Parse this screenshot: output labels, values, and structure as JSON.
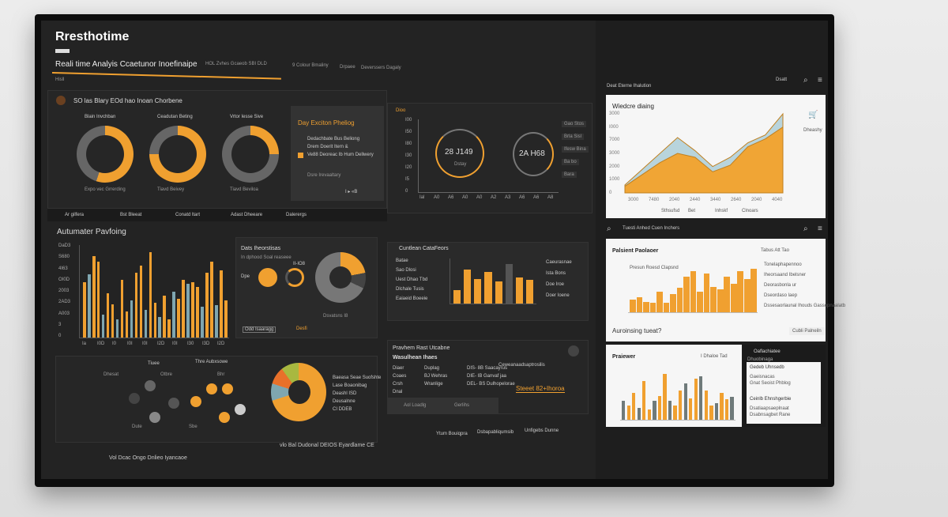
{
  "app": {
    "title": "Rresthotime"
  },
  "header": {
    "title": "Reali time Analyis  Ccaetunor Inoefinaipe",
    "items": [
      "HOL Zvhes  Gcaeob SBI DLD",
      "9 Colour Bmaliny",
      "Drpaee",
      "Deverssers Dagaly"
    ],
    "sub": "Hisll"
  },
  "colors": {
    "accent": "#f0a030",
    "bg": "#232323",
    "panel": "#2a2a2a",
    "teal": "#7fa6b0"
  },
  "rings": {
    "title": "SO las Blary EOd hao Inoan Chorbene",
    "items": [
      {
        "label": "Blain Invchban",
        "caption": "Expo vec Grrerding",
        "value": 0.55
      },
      {
        "label": "Ceadutan Beting",
        "caption": "Tiavd Beivey",
        "value": 0.75
      },
      {
        "label": "Vrtor Iesse Sive",
        "caption": "Tiavd Beviloa",
        "value": 0.25
      }
    ]
  },
  "day_panel": {
    "title": "Day Exciton Pheliog",
    "items": [
      "Dedachbate Bus Beliong",
      "Drem Doerit Itern &",
      "Ve88 Deoreac Ib Hum Dellwery"
    ],
    "footer": "Dsre Irevaaltary",
    "pager": "I  ▸  «B"
  },
  "gauges": {
    "tab": "Dioo",
    "values": [
      "28 J149",
      "2A H68"
    ],
    "caption": "Dstay",
    "yticks": [
      "I00",
      "I50",
      "I80",
      "I30",
      "I20",
      "I5",
      "0"
    ],
    "xticks": [
      "Ial",
      "A0",
      "A6",
      "A0",
      "A0",
      "A2",
      "A3",
      "A6",
      "A6",
      "A8"
    ],
    "side": [
      "Gao Stos",
      "Brla Sisl",
      "Ifesw Bina",
      "Ba bo",
      "Bara"
    ]
  },
  "toolbar": {
    "items": [
      "Ar gilfera",
      "Bst Bleeat",
      "Conatd ltart",
      "Adast Dheeare",
      "Dalerergs"
    ]
  },
  "perf": {
    "title": "Autumater Pavfoing",
    "yticks": [
      "DaD3",
      "S680",
      "4I63",
      "OI0D",
      "2003",
      "2AD3",
      "A003",
      "3",
      "0"
    ],
    "xticks": [
      "Ia",
      "I0D",
      "I0",
      "I0I",
      "I0I",
      "I2D",
      "I0I",
      "I30",
      "I3D",
      "I2D"
    ]
  },
  "donut_panel": {
    "title": "Dats Iheorstisas",
    "sub": "In dphood Soal reaseee",
    "labels": [
      "Dpe",
      "II-IO8",
      "Dsvatsns I8"
    ],
    "legend": [
      "Odd Isaaragg",
      "Desfi"
    ]
  },
  "customer": {
    "title": "Cuntlean CataFeors",
    "menu": [
      "Batae",
      "Sao Dlosi",
      "Uest Dhao Tbd",
      "Dlchale Tusis",
      "Eaiaeid Boeeie"
    ],
    "side": [
      "Caeurasnae",
      "Ista Bons",
      "Doe Iroe",
      "Doer Ioene"
    ]
  },
  "network": {
    "title1": "Tiuee",
    "title2": "Thre Aubxsowe",
    "labels": [
      "Dhesat",
      "Dute",
      "Otbre",
      "Sbe",
      "Bhr"
    ],
    "legend": [
      "Baeasa  Seae Suofshte",
      "Lase Boaonibag",
      "Deashl ISD",
      "Deusalnne",
      "CI DDEB"
    ]
  },
  "problem": {
    "title": "Pravhem Rast Utcabne",
    "subtitle": "Wasulhean Ihaes",
    "rows": [
      [
        "Diaer",
        "Duplag",
        "DIS- 8B Saacayrus"
      ],
      [
        "Coaes",
        "BJ Wehras",
        "DIE-  IB Ganvaf jaa"
      ],
      [
        "Crsh",
        "Wranlige",
        "DEL- BS Dulhopelorae"
      ],
      [
        "Dnal",
        "",
        ""
      ]
    ],
    "tag": "Ceweanaadsaptrosilis",
    "highlight": "Steeet 82+Ihoroa",
    "footer": [
      "Aol  Loadlg",
      "Gerlihs"
    ]
  },
  "footer": {
    "left": "Vol  Dcac Ongo Dnlieo Iyancaoe",
    "right": "vlo  Bal  Dudonal DEIOS  Eyardlame CE",
    "links": [
      "Ytum Bouiqpra",
      "Dsbapabliqumsib",
      "Unfigebs Dunne"
    ]
  },
  "right1": {
    "header": "Deat Eterne Ihalution",
    "tools": "Dsatt",
    "title": "Wiedcre diaing",
    "yticks": [
      "3000",
      "I000",
      "7000",
      "3000",
      "2000",
      "1000",
      "0"
    ],
    "xticks": [
      "3000",
      "7480",
      "2040",
      "2440",
      "3440",
      "2640",
      "2040",
      "4040"
    ],
    "legend": [
      "Sthsufsd",
      "Bet",
      "Inhskf",
      "Clnoars"
    ],
    "cart": "Dheashy"
  },
  "right2": {
    "header": "Tuesti Anhed Cuen Inchers",
    "title": "Palsient Paolaoer",
    "tabs": "Tabus  Att  Tao",
    "chart_label": "Presun Roesd Clapsnd",
    "options": [
      "Tonelaphapennoo",
      "Iheorsaand Ibelsner",
      "Deorasbonla  ur",
      "Dseordaso laep",
      "Dssesaorlaunal Ihouds Gassopnaalatb"
    ],
    "question": "Auroinsing tueat?",
    "button": "Cubli Palneiln"
  },
  "right3": {
    "title": "Praiewer",
    "tools": "I  Dhaloe  Tad",
    "panel_title": "Oaflachiatee",
    "panel_sub": "Dhuobinaga",
    "groups": [
      "Gedeb Uhnsedb",
      "Ceinlb Ehnshgerbie"
    ],
    "lines": [
      "Gaeisnacas",
      "Gnat Seoist Phblog",
      "Dsatiaapsaeplnaat",
      "Dsabnsagbet Rane"
    ]
  },
  "chart_data": [
    {
      "type": "bar",
      "id": "perf",
      "series": [
        {
          "values": [
            60,
            68,
            88,
            82,
            25,
            48,
            36,
            20,
            62,
            28,
            40,
            70,
            78,
            30,
            92,
            38,
            22,
            45,
            20,
            50,
            42,
            62,
            58,
            60,
            55,
            33,
            70,
            82,
            35,
            73,
            40
          ]
        }
      ],
      "ylim": [
        0,
        100
      ]
    },
    {
      "type": "bar",
      "id": "customer",
      "values": [
        30,
        75,
        55,
        70,
        50,
        88,
        58,
        52
      ],
      "ylim": [
        0,
        100
      ]
    },
    {
      "type": "area",
      "id": "right1",
      "series": [
        {
          "name": "Sthsufsd",
          "values": [
            500,
            1400,
            2300,
            3000,
            2700,
            1600,
            2100,
            3500,
            4100,
            5000
          ]
        },
        {
          "name": "Bet",
          "values": [
            600,
            1800,
            3000,
            4200,
            3200,
            2000,
            2700,
            3800,
            4400,
            6000
          ]
        }
      ],
      "ylim": [
        0,
        6000
      ]
    },
    {
      "type": "bar",
      "id": "right2",
      "values": [
        25,
        30,
        20,
        18,
        40,
        18,
        35,
        48,
        70,
        80,
        40,
        75,
        50,
        45,
        70,
        55,
        80,
        65,
        85
      ],
      "ylim": [
        0,
        100
      ]
    },
    {
      "type": "bar",
      "id": "right3",
      "values": [
        40,
        30,
        55,
        25,
        80,
        22,
        40,
        50,
        95,
        40,
        30,
        60,
        75,
        45,
        85,
        90,
        60,
        30,
        35,
        55,
        42,
        48
      ],
      "ylim": [
        0,
        100
      ]
    }
  ]
}
